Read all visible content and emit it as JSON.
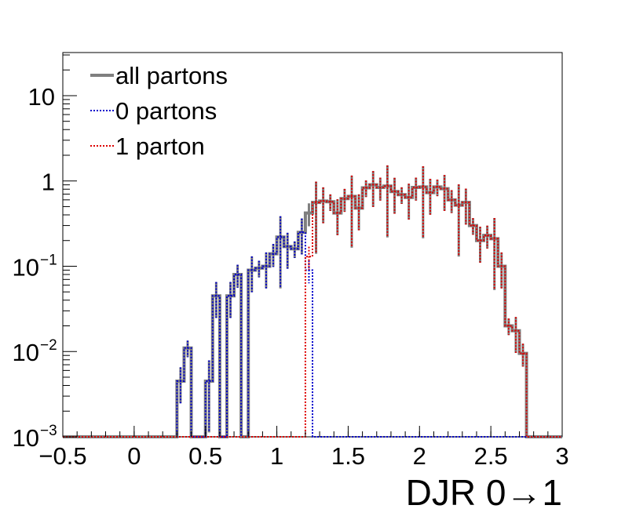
{
  "chart_data": {
    "type": "line",
    "xlabel": "DJR 0→1",
    "xlim": [
      -0.5,
      3.0
    ],
    "ylim": [
      0.001,
      32
    ],
    "yscale": "log",
    "x_ticks": [
      "−0.5",
      "0",
      "0.5",
      "1",
      "1.5",
      "2",
      "2.5",
      "3"
    ],
    "x_tick_values": [
      -0.5,
      0,
      0.5,
      1.0,
      1.5,
      2.0,
      2.5,
      3.0
    ],
    "y_ticks": [
      {
        "value": 0.001,
        "base": "10",
        "exp": "−3"
      },
      {
        "value": 0.01,
        "base": "10",
        "exp": "−2"
      },
      {
        "value": 0.1,
        "base": "10",
        "exp": "−1"
      },
      {
        "value": 1,
        "base": "1",
        "exp": ""
      },
      {
        "value": 10,
        "base": "10",
        "exp": ""
      }
    ],
    "legend_position": "top-left",
    "bin_edges": [
      -0.5,
      -0.45,
      -0.4,
      -0.35,
      -0.3,
      -0.25,
      -0.2,
      -0.15,
      -0.1,
      -0.05,
      0.0,
      0.05,
      0.1,
      0.15,
      0.2,
      0.25,
      0.3,
      0.35,
      0.4,
      0.45,
      0.5,
      0.55,
      0.6,
      0.65,
      0.7,
      0.75,
      0.8,
      0.85,
      0.9,
      0.95,
      1.0,
      1.05,
      1.1,
      1.15,
      1.2,
      1.25,
      1.3,
      1.35,
      1.4,
      1.45,
      1.5,
      1.55,
      1.6,
      1.65,
      1.7,
      1.75,
      1.8,
      1.85,
      1.9,
      1.95,
      2.0,
      2.05,
      2.1,
      2.15,
      2.2,
      2.25,
      2.3,
      2.35,
      2.4,
      2.45,
      2.5,
      2.55,
      2.6,
      2.65,
      2.7,
      2.75,
      2.8,
      2.85,
      2.9,
      2.95,
      3.0
    ],
    "series": [
      {
        "name": "all partons",
        "color": "#7f7f7f",
        "style": "solid",
        "values": [
          0.001,
          0.001,
          0.001,
          0.001,
          0.001,
          0.001,
          0.001,
          0.001,
          0.001,
          0.001,
          0.001,
          0.001,
          0.001,
          0.001,
          0.001,
          0.001,
          0.0045,
          0.011,
          0.001,
          0.001,
          0.0045,
          0.045,
          0.001,
          0.045,
          0.08,
          0.001,
          0.09,
          0.095,
          0.1,
          0.14,
          0.22,
          0.17,
          0.16,
          0.25,
          0.42,
          0.56,
          0.58,
          0.57,
          0.42,
          0.62,
          0.66,
          0.48,
          0.83,
          0.9,
          0.84,
          0.87,
          0.75,
          0.69,
          0.64,
          0.84,
          0.85,
          0.73,
          0.85,
          0.81,
          0.6,
          0.52,
          0.56,
          0.3,
          0.2,
          0.23,
          0.21,
          0.1,
          0.02,
          0.0175,
          0.0095,
          0.001,
          0.001,
          0.001,
          0.001,
          0.001
        ]
      },
      {
        "name": "0 partons",
        "color": "#0000cc",
        "style": "dotted",
        "values": [
          0.001,
          0.001,
          0.001,
          0.001,
          0.001,
          0.001,
          0.001,
          0.001,
          0.001,
          0.001,
          0.001,
          0.001,
          0.001,
          0.001,
          0.001,
          0.001,
          0.0045,
          0.011,
          0.001,
          0.001,
          0.0045,
          0.045,
          0.001,
          0.045,
          0.08,
          0.001,
          0.09,
          0.095,
          0.1,
          0.14,
          0.22,
          0.17,
          0.16,
          0.25,
          0.09,
          0.001,
          0.001,
          0.001,
          0.001,
          0.001,
          0.001,
          0.001,
          0.001,
          0.001,
          0.001,
          0.001,
          0.001,
          0.001,
          0.001,
          0.001,
          0.001,
          0.001,
          0.001,
          0.001,
          0.001,
          0.001,
          0.001,
          0.001,
          0.001,
          0.001,
          0.001,
          0.001,
          0.001,
          0.001,
          0.001,
          0.001,
          0.001,
          0.001,
          0.001,
          0.001
        ]
      },
      {
        "name": "1 parton",
        "color": "#dd0000",
        "style": "dotted",
        "values": [
          0.001,
          0.001,
          0.001,
          0.001,
          0.001,
          0.001,
          0.001,
          0.001,
          0.001,
          0.001,
          0.001,
          0.001,
          0.001,
          0.001,
          0.001,
          0.001,
          0.001,
          0.001,
          0.001,
          0.001,
          0.001,
          0.001,
          0.001,
          0.001,
          0.001,
          0.001,
          0.001,
          0.001,
          0.001,
          0.001,
          0.001,
          0.001,
          0.001,
          0.001,
          0.13,
          0.56,
          0.58,
          0.57,
          0.42,
          0.62,
          0.66,
          0.48,
          0.83,
          0.9,
          0.84,
          0.87,
          0.75,
          0.69,
          0.64,
          0.84,
          0.85,
          0.73,
          0.85,
          0.81,
          0.6,
          0.52,
          0.56,
          0.3,
          0.2,
          0.23,
          0.21,
          0.1,
          0.02,
          0.0175,
          0.0095,
          0.001,
          0.001,
          0.001,
          0.001,
          0.001
        ]
      }
    ]
  }
}
